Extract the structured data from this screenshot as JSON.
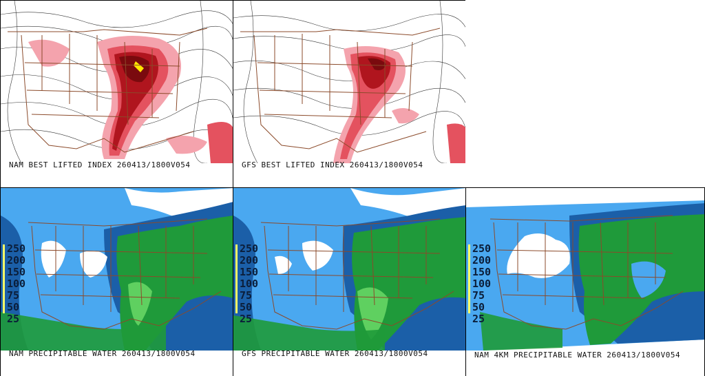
{
  "panels": {
    "nam_li": {
      "caption": "NAM BEST LIFTED INDEX 260413/1800V054"
    },
    "gfs_li": {
      "caption": "GFS BEST LIFTED INDEX 260413/1800V054"
    },
    "nam_pw": {
      "caption": "NAM PRECIPITABLE WATER 260413/1800V054"
    },
    "gfs_pw": {
      "caption": "GFS PRECIPITABLE WATER 260413/1800V054"
    },
    "nam4_pw": {
      "caption": "NAM 4KM PRECIPITABLE WATER 260413/1800V054"
    }
  },
  "legend": {
    "values": [
      "250",
      "200",
      "150",
      "100",
      "75",
      "50",
      "25"
    ]
  },
  "colors": {
    "li_light": "#f4a3ad",
    "li_mid": "#e4525f",
    "li_dark": "#b0151e",
    "li_core": "#7a0a0e",
    "li_yellow": "#ffe600",
    "pw_light": "#4aa8f0",
    "pw_dark": "#1b5fa8",
    "pw_green": "#1f9a3a",
    "pw_lightgreen": "#5fd060",
    "pw_white": "#ffffff",
    "boundary": "#8b4a2a",
    "contour": "#222222"
  }
}
